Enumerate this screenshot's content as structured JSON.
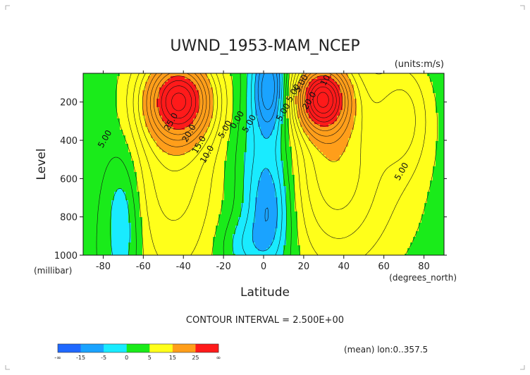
{
  "chart_data": {
    "type": "heatmap",
    "title": "UWND_1953-MAM_NCEP",
    "units_note": "(units:m/s)",
    "xlabel": "Latitude",
    "x_units": "(degrees_north)",
    "ylabel": "Level",
    "y_units": "(millibar)",
    "xlim": [
      -90,
      90
    ],
    "ylim": [
      1000,
      10
    ],
    "y_reversed": true,
    "x_ticks": [
      -80,
      -60,
      -40,
      -20,
      0,
      20,
      40,
      60,
      80
    ],
    "y_ticks": [
      200,
      400,
      600,
      800,
      1000
    ],
    "contour_interval_text": "CONTOUR INTERVAL = 2.500E+00",
    "footer_note": "(mean) lon:0..357.5",
    "contour_labels": [
      {
        "text": "5.00",
        "lat": -78,
        "lev": 400
      },
      {
        "text": "25.0",
        "lat": -45,
        "lev": 310
      },
      {
        "text": "20.0",
        "lat": -36,
        "lev": 370
      },
      {
        "text": "15.0",
        "lat": -31,
        "lev": 430
      },
      {
        "text": "10.0",
        "lat": -27,
        "lev": 480
      },
      {
        "text": "5.00",
        "lat": -18,
        "lev": 350
      },
      {
        "text": "0.00",
        "lat": -12,
        "lev": 300
      },
      {
        "text": "5.00",
        "lat": -6,
        "lev": 320
      },
      {
        "text": "5.00",
        "lat": 11,
        "lev": 260
      },
      {
        "text": "5.00",
        "lat": 16,
        "lev": 160
      },
      {
        "text": "5.00",
        "lat": 20,
        "lev": 110
      },
      {
        "text": "10.0",
        "lat": 33,
        "lev": 75
      },
      {
        "text": "20.0",
        "lat": 24,
        "lev": 200
      },
      {
        "text": "5.00",
        "lat": 70,
        "lev": 570
      }
    ],
    "jets": [
      {
        "name": "southern jet",
        "lat": -42,
        "lev": 190,
        "max": 30
      },
      {
        "name": "northern jet",
        "lat": 29,
        "lev": 180,
        "max": 30
      }
    ],
    "colorbar": {
      "labels": [
        "-∞",
        "-15",
        "-5",
        "0",
        "5",
        "15",
        "25",
        "∞"
      ],
      "bins": [
        {
          "from": "-∞",
          "to": -15,
          "color": "#1f68ff"
        },
        {
          "from": -15,
          "to": -5,
          "color": "#1aa3ff"
        },
        {
          "from": -5,
          "to": 0,
          "color": "#19ebff"
        },
        {
          "from": 0,
          "to": 5,
          "color": "#1aeb1a"
        },
        {
          "from": 5,
          "to": 15,
          "color": "#ffff1a"
        },
        {
          "from": 15,
          "to": 25,
          "color": "#ff9e1a"
        },
        {
          "from": 25,
          "to": "∞",
          "color": "#ff1a1a"
        }
      ]
    }
  }
}
